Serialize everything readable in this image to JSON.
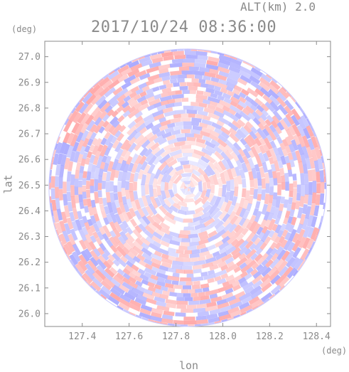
{
  "header": {
    "altitude_label": "ALT(km)  2.0",
    "timestamp": "2017/10/24 08:36:00"
  },
  "chart_data": {
    "type": "heatmap",
    "title": "2017/10/24 08:36:00",
    "subtitle": "ALT(km)  2.0",
    "xlabel": "lon",
    "ylabel": "lat",
    "x_unit": "(deg)",
    "y_unit": "(deg)",
    "xlim": [
      127.24,
      128.46
    ],
    "ylim": [
      25.95,
      27.06
    ],
    "xticks": [
      127.4,
      127.6,
      127.8,
      128.0,
      128.2,
      128.4
    ],
    "xtick_labels": [
      "127.4",
      "127.6",
      "127.8",
      "128.0",
      "128.2",
      "128.4"
    ],
    "yticks": [
      26.0,
      26.1,
      26.2,
      26.3,
      26.4,
      26.5,
      26.6,
      26.7,
      26.8,
      26.9,
      27.0
    ],
    "ytick_labels": [
      "26.0",
      "26.1",
      "26.2",
      "26.3",
      "26.4",
      "26.5",
      "26.6",
      "26.7",
      "26.8",
      "26.9",
      "27.0"
    ],
    "center": {
      "lon": 127.85,
      "lat": 26.49
    },
    "radius_deg_lat": 0.54,
    "colors": {
      "positive": "#ff9a9a",
      "negative": "#9a9aff",
      "zero": "#ffffff",
      "axis": "#8a8a8a"
    },
    "grid": false
  }
}
